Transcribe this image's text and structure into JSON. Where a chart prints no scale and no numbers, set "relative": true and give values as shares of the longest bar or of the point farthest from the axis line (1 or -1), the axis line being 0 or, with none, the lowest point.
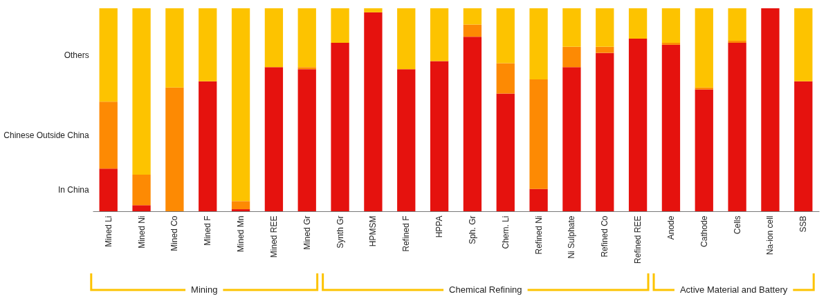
{
  "chart_data": {
    "type": "bar",
    "stacked": true,
    "relative": true,
    "categories": [
      "Mined Li",
      "Mined Ni",
      "Mined Co",
      "Mined F",
      "Mined Mn",
      "Mined REE",
      "Mined Gr",
      "Synth Gr",
      "HPMSM",
      "Refined F",
      "HPPA",
      "Sph. Gr",
      "Chem. Li",
      "Refined Ni",
      "Ni Sulphate",
      "Refined Co",
      "Refined REE",
      "Anode",
      "Cathode",
      "Cells",
      "Na-ion cell",
      "SSB"
    ],
    "series": [
      {
        "name": "In China",
        "color": "#e5120e",
        "values": [
          0.21,
          0.03,
          0,
          0.64,
          0.01,
          0.71,
          0.7,
          0.83,
          0.98,
          0.7,
          0.74,
          0.86,
          0.58,
          0.11,
          0.71,
          0.78,
          0.85,
          0.82,
          0.6,
          0.83,
          1.0,
          0.64
        ]
      },
      {
        "name": "Chinese Outside China",
        "color": "#fd8a03",
        "values": [
          0.33,
          0.15,
          0.61,
          0,
          0.04,
          0,
          0.01,
          0,
          0,
          0,
          0,
          0.06,
          0.15,
          0.54,
          0.1,
          0.03,
          0,
          0.01,
          0.01,
          0.01,
          0,
          0
        ]
      },
      {
        "name": "Others",
        "color": "#fdc300",
        "values": [
          0.46,
          0.82,
          0.39,
          0.36,
          0.95,
          0.29,
          0.29,
          0.17,
          0.02,
          0.3,
          0.26,
          0.08,
          0.27,
          0.35,
          0.19,
          0.19,
          0.15,
          0.17,
          0.39,
          0.16,
          0,
          0.36
        ]
      }
    ],
    "annotations": [
      "Mining",
      "Chemical Refining",
      "Active Material and Battery"
    ]
  }
}
